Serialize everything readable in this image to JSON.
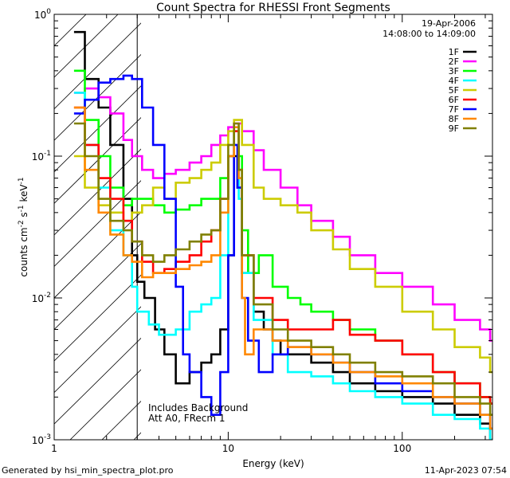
{
  "chart_data": {
    "type": "line",
    "title": "Count Spectra for RHESSI Front Segments",
    "xlabel": "Energy (keV)",
    "ylabel_parts": [
      "counts cm",
      "-2",
      " s",
      "-1",
      " keV",
      "-1"
    ],
    "xscale": "log",
    "yscale": "log",
    "xlim": [
      1,
      330
    ],
    "ylim": [
      0.001,
      1
    ],
    "x_ticks": [
      {
        "v": 1,
        "label": "1"
      },
      {
        "v": 10,
        "label": "10"
      },
      {
        "v": 100,
        "label": "100"
      }
    ],
    "y_ticks": [
      {
        "v": 1,
        "base": "10",
        "exp": "0"
      },
      {
        "v": 0.1,
        "base": "10",
        "exp": "-1"
      },
      {
        "v": 0.01,
        "base": "10",
        "exp": "-2"
      },
      {
        "v": 0.001,
        "base": "10",
        "exp": "-3"
      }
    ],
    "legend": {
      "position": "top-right",
      "date": "19-Apr-2006",
      "time_range": "14:08:00 to 14:09:00"
    },
    "annotations": [
      "Includes Background",
      "Att A0, FRecm 1"
    ],
    "hatched_region": [
      1,
      3
    ],
    "footer_left": "Generated by hsi_min_spectra_plot.pro",
    "footer_right": "11-Apr-2023 07:54",
    "series": [
      {
        "name": "1F",
        "color": "#000000",
        "points": [
          [
            1.3,
            0.75
          ],
          [
            1.5,
            0.35
          ],
          [
            1.8,
            0.22
          ],
          [
            2.1,
            0.12
          ],
          [
            2.5,
            0.05
          ],
          [
            2.8,
            0.02
          ],
          [
            3.0,
            0.013
          ],
          [
            3.3,
            0.01
          ],
          [
            3.8,
            0.006
          ],
          [
            4.3,
            0.004
          ],
          [
            5,
            0.0025
          ],
          [
            6,
            0.003
          ],
          [
            7,
            0.0035
          ],
          [
            8,
            0.004
          ],
          [
            9,
            0.006
          ],
          [
            10,
            0.02
          ],
          [
            10.8,
            0.1
          ],
          [
            11.3,
            0.06
          ],
          [
            12,
            0.015
          ],
          [
            13,
            0.02
          ],
          [
            14,
            0.008
          ],
          [
            16,
            0.006
          ],
          [
            18,
            0.005
          ],
          [
            20,
            0.004
          ],
          [
            25,
            0.004
          ],
          [
            30,
            0.0035
          ],
          [
            40,
            0.003
          ],
          [
            50,
            0.0025
          ],
          [
            70,
            0.0022
          ],
          [
            100,
            0.002
          ],
          [
            150,
            0.0018
          ],
          [
            200,
            0.0015
          ],
          [
            280,
            0.0013
          ],
          [
            320,
            0.001
          ]
        ]
      },
      {
        "name": "2F",
        "color": "#ff00ff",
        "points": [
          [
            1.3,
            0.28
          ],
          [
            1.5,
            0.3
          ],
          [
            1.8,
            0.26
          ],
          [
            2.1,
            0.2
          ],
          [
            2.5,
            0.13
          ],
          [
            2.8,
            0.1
          ],
          [
            3.2,
            0.08
          ],
          [
            3.7,
            0.07
          ],
          [
            4.3,
            0.075
          ],
          [
            5,
            0.08
          ],
          [
            6,
            0.09
          ],
          [
            7,
            0.1
          ],
          [
            8,
            0.12
          ],
          [
            9,
            0.14
          ],
          [
            10,
            0.16
          ],
          [
            10.8,
            0.17
          ],
          [
            12,
            0.15
          ],
          [
            14,
            0.11
          ],
          [
            16,
            0.08
          ],
          [
            20,
            0.06
          ],
          [
            25,
            0.045
          ],
          [
            30,
            0.035
          ],
          [
            40,
            0.027
          ],
          [
            50,
            0.02
          ],
          [
            70,
            0.015
          ],
          [
            100,
            0.012
          ],
          [
            150,
            0.009
          ],
          [
            200,
            0.007
          ],
          [
            280,
            0.006
          ],
          [
            320,
            0.005
          ]
        ]
      },
      {
        "name": "3F",
        "color": "#00ff00",
        "points": [
          [
            1.3,
            0.4
          ],
          [
            1.5,
            0.18
          ],
          [
            1.8,
            0.1
          ],
          [
            2.1,
            0.06
          ],
          [
            2.5,
            0.045
          ],
          [
            2.8,
            0.05
          ],
          [
            3.2,
            0.05
          ],
          [
            3.7,
            0.045
          ],
          [
            4.3,
            0.04
          ],
          [
            5,
            0.042
          ],
          [
            6,
            0.045
          ],
          [
            7,
            0.05
          ],
          [
            8,
            0.05
          ],
          [
            9,
            0.07
          ],
          [
            10,
            0.1
          ],
          [
            10.8,
            0.15
          ],
          [
            11.5,
            0.1
          ],
          [
            12,
            0.03
          ],
          [
            13,
            0.015
          ],
          [
            15,
            0.02
          ],
          [
            18,
            0.012
          ],
          [
            22,
            0.01
          ],
          [
            26,
            0.009
          ],
          [
            30,
            0.008
          ],
          [
            40,
            0.007
          ],
          [
            50,
            0.006
          ],
          [
            70,
            0.005
          ],
          [
            100,
            0.004
          ],
          [
            150,
            0.003
          ],
          [
            200,
            0.0025
          ],
          [
            280,
            0.002
          ],
          [
            320,
            0.0018
          ]
        ]
      },
      {
        "name": "4F",
        "color": "#00ffff",
        "points": [
          [
            1.3,
            0.28
          ],
          [
            1.5,
            0.12
          ],
          [
            1.8,
            0.06
          ],
          [
            2.1,
            0.03
          ],
          [
            2.5,
            0.02
          ],
          [
            2.8,
            0.012
          ],
          [
            3.0,
            0.008
          ],
          [
            3.5,
            0.0065
          ],
          [
            4.0,
            0.0055
          ],
          [
            5,
            0.006
          ],
          [
            6,
            0.008
          ],
          [
            7,
            0.009
          ],
          [
            8,
            0.01
          ],
          [
            9,
            0.02
          ],
          [
            10,
            0.1
          ],
          [
            10.8,
            0.15
          ],
          [
            11.5,
            0.05
          ],
          [
            12,
            0.015
          ],
          [
            14,
            0.007
          ],
          [
            18,
            0.004
          ],
          [
            22,
            0.003
          ],
          [
            30,
            0.0028
          ],
          [
            40,
            0.0025
          ],
          [
            50,
            0.0022
          ],
          [
            70,
            0.002
          ],
          [
            100,
            0.0018
          ],
          [
            150,
            0.0015
          ],
          [
            200,
            0.0014
          ],
          [
            280,
            0.0012
          ],
          [
            320,
            0.001
          ]
        ]
      },
      {
        "name": "5F",
        "color": "#cccc00",
        "points": [
          [
            1.3,
            0.1
          ],
          [
            1.5,
            0.06
          ],
          [
            1.8,
            0.045
          ],
          [
            2.1,
            0.04
          ],
          [
            2.5,
            0.035
          ],
          [
            2.8,
            0.04
          ],
          [
            3.2,
            0.045
          ],
          [
            3.7,
            0.06
          ],
          [
            4.3,
            0.05
          ],
          [
            5,
            0.065
          ],
          [
            6,
            0.07
          ],
          [
            7,
            0.08
          ],
          [
            8,
            0.09
          ],
          [
            9,
            0.12
          ],
          [
            10,
            0.15
          ],
          [
            10.8,
            0.18
          ],
          [
            12,
            0.12
          ],
          [
            14,
            0.06
          ],
          [
            16,
            0.05
          ],
          [
            20,
            0.045
          ],
          [
            25,
            0.04
          ],
          [
            30,
            0.03
          ],
          [
            40,
            0.022
          ],
          [
            50,
            0.016
          ],
          [
            70,
            0.012
          ],
          [
            100,
            0.008
          ],
          [
            150,
            0.006
          ],
          [
            200,
            0.0045
          ],
          [
            280,
            0.0038
          ],
          [
            320,
            0.003
          ]
        ]
      },
      {
        "name": "6F",
        "color": "#ff0000",
        "points": [
          [
            1.3,
            0.22
          ],
          [
            1.5,
            0.12
          ],
          [
            1.8,
            0.07
          ],
          [
            2.1,
            0.05
          ],
          [
            2.5,
            0.035
          ],
          [
            2.8,
            0.025
          ],
          [
            3.2,
            0.018
          ],
          [
            3.7,
            0.015
          ],
          [
            4.3,
            0.016
          ],
          [
            5,
            0.018
          ],
          [
            6,
            0.02
          ],
          [
            7,
            0.025
          ],
          [
            8,
            0.03
          ],
          [
            9,
            0.05
          ],
          [
            10,
            0.1
          ],
          [
            10.8,
            0.15
          ],
          [
            11.5,
            0.08
          ],
          [
            12,
            0.02
          ],
          [
            14,
            0.01
          ],
          [
            18,
            0.007
          ],
          [
            22,
            0.006
          ],
          [
            30,
            0.006
          ],
          [
            40,
            0.007
          ],
          [
            50,
            0.0055
          ],
          [
            70,
            0.005
          ],
          [
            100,
            0.004
          ],
          [
            150,
            0.003
          ],
          [
            200,
            0.0025
          ],
          [
            280,
            0.002
          ],
          [
            320,
            0.0018
          ]
        ]
      },
      {
        "name": "7F",
        "color": "#0000ff",
        "points": [
          [
            1.3,
            0.2
          ],
          [
            1.5,
            0.25
          ],
          [
            1.8,
            0.33
          ],
          [
            2.1,
            0.35
          ],
          [
            2.5,
            0.37
          ],
          [
            2.8,
            0.35
          ],
          [
            3.2,
            0.22
          ],
          [
            3.7,
            0.12
          ],
          [
            4.3,
            0.05
          ],
          [
            5,
            0.012
          ],
          [
            5.5,
            0.004
          ],
          [
            6,
            0.003
          ],
          [
            7,
            0.002
          ],
          [
            8,
            0.0015
          ],
          [
            9,
            0.003
          ],
          [
            10,
            0.02
          ],
          [
            10.8,
            0.12
          ],
          [
            11.3,
            0.06
          ],
          [
            12,
            0.01
          ],
          [
            13,
            0.005
          ],
          [
            15,
            0.003
          ],
          [
            18,
            0.004
          ],
          [
            22,
            0.0045
          ],
          [
            30,
            0.004
          ],
          [
            40,
            0.0035
          ],
          [
            50,
            0.003
          ],
          [
            70,
            0.0025
          ],
          [
            100,
            0.0022
          ],
          [
            150,
            0.002
          ],
          [
            200,
            0.0018
          ],
          [
            280,
            0.0015
          ],
          [
            320,
            0.0012
          ]
        ]
      },
      {
        "name": "8F",
        "color": "#ff8800",
        "points": [
          [
            1.3,
            0.22
          ],
          [
            1.5,
            0.08
          ],
          [
            1.8,
            0.04
          ],
          [
            2.1,
            0.028
          ],
          [
            2.5,
            0.02
          ],
          [
            2.8,
            0.018
          ],
          [
            3.2,
            0.014
          ],
          [
            3.7,
            0.015
          ],
          [
            4.3,
            0.015
          ],
          [
            5,
            0.016
          ],
          [
            6,
            0.017
          ],
          [
            7,
            0.018
          ],
          [
            8,
            0.02
          ],
          [
            9,
            0.04
          ],
          [
            10,
            0.1
          ],
          [
            10.8,
            0.16
          ],
          [
            11.5,
            0.07
          ],
          [
            12,
            0.01
          ],
          [
            12.5,
            0.004
          ],
          [
            14,
            0.006
          ],
          [
            18,
            0.005
          ],
          [
            22,
            0.0045
          ],
          [
            30,
            0.004
          ],
          [
            40,
            0.0035
          ],
          [
            50,
            0.003
          ],
          [
            70,
            0.0028
          ],
          [
            100,
            0.0025
          ],
          [
            150,
            0.002
          ],
          [
            200,
            0.0018
          ],
          [
            280,
            0.0015
          ],
          [
            320,
            0.0012
          ]
        ]
      },
      {
        "name": "9F",
        "color": "#808000",
        "points": [
          [
            1.3,
            0.17
          ],
          [
            1.5,
            0.1
          ],
          [
            1.8,
            0.05
          ],
          [
            2.1,
            0.035
          ],
          [
            2.5,
            0.03
          ],
          [
            2.8,
            0.025
          ],
          [
            3.2,
            0.02
          ],
          [
            3.7,
            0.018
          ],
          [
            4.3,
            0.02
          ],
          [
            5,
            0.022
          ],
          [
            6,
            0.025
          ],
          [
            7,
            0.028
          ],
          [
            8,
            0.03
          ],
          [
            9,
            0.05
          ],
          [
            10,
            0.12
          ],
          [
            10.8,
            0.17
          ],
          [
            11.5,
            0.08
          ],
          [
            12,
            0.02
          ],
          [
            14,
            0.009
          ],
          [
            18,
            0.006
          ],
          [
            22,
            0.005
          ],
          [
            30,
            0.0045
          ],
          [
            40,
            0.004
          ],
          [
            50,
            0.0035
          ],
          [
            70,
            0.003
          ],
          [
            100,
            0.0028
          ],
          [
            150,
            0.0025
          ],
          [
            200,
            0.002
          ],
          [
            280,
            0.0018
          ],
          [
            320,
            0.0015
          ]
        ]
      }
    ]
  }
}
